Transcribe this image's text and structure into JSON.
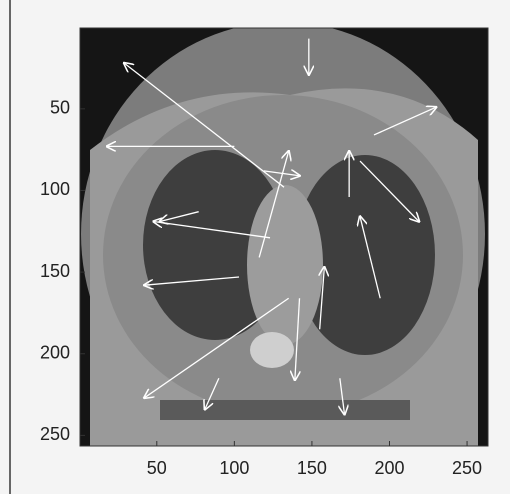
{
  "chart_data": {
    "type": "quiver",
    "xlim": [
      0.5,
      263.5
    ],
    "ylim": [
      0.5,
      256.5
    ],
    "xticks": [
      50,
      100,
      150,
      200,
      250
    ],
    "yticks": [
      50,
      100,
      150,
      200,
      250
    ],
    "color": "#ffffff",
    "x": [
      132,
      100,
      135,
      103,
      123,
      181,
      190,
      90,
      168,
      148,
      174,
      194,
      116,
      142,
      155,
      119,
      77
    ],
    "y": [
      98,
      73,
      166,
      153,
      129,
      82,
      66,
      215,
      215,
      7,
      104,
      166,
      141,
      166,
      185,
      88,
      113
    ],
    "u": [
      -103,
      -82,
      -93,
      -61,
      -75,
      38,
      40,
      -9,
      3,
      0,
      0,
      -13,
      19,
      -3,
      3,
      23,
      -25
    ],
    "v": [
      -76,
      0,
      61,
      5,
      -10,
      37,
      -17,
      19,
      22,
      22,
      -28,
      -50,
      -65,
      50,
      -38,
      3,
      6
    ]
  }
}
